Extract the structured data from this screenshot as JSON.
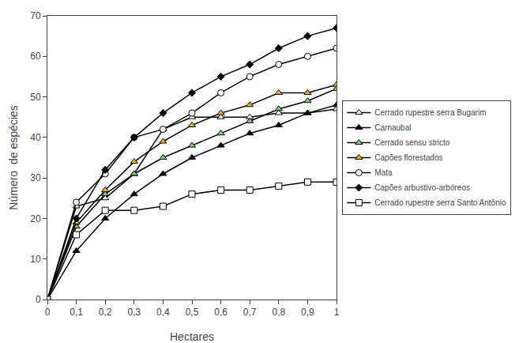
{
  "chart_data": {
    "type": "line",
    "x": [
      0,
      0.1,
      0.2,
      0.3,
      0.4,
      0.5,
      0.6,
      0.7,
      0.8,
      0.9,
      1.0
    ],
    "series": [
      {
        "name": "Cerrado rupestre serra Bugarim",
        "color": "#ffffff",
        "marker": "triangle",
        "values": [
          0,
          23,
          25,
          31,
          42,
          45,
          45,
          45,
          46,
          46,
          47
        ]
      },
      {
        "name": "Carnaubal",
        "color": "#000000",
        "marker": "triangle",
        "values": [
          0,
          12,
          20,
          26,
          31,
          35,
          38,
          41,
          43,
          46,
          48
        ]
      },
      {
        "name": "Cerrado sensu stricto",
        "color": "#7fc97f",
        "marker": "triangle",
        "values": [
          0,
          18,
          26,
          31,
          35,
          38,
          41,
          44,
          47,
          49,
          52
        ]
      },
      {
        "name": "Capões florestados",
        "color": "#e6b800",
        "marker": "triangle",
        "values": [
          0,
          19,
          27,
          34,
          39,
          43,
          46,
          48,
          51,
          51,
          53
        ]
      },
      {
        "name": "Mata",
        "color": "#ffffff",
        "marker": "circle",
        "values": [
          0,
          24,
          31,
          40,
          42,
          46,
          51,
          55,
          58,
          60,
          62
        ]
      },
      {
        "name": "Capões arbustivo-arbóreos",
        "color": "#000000",
        "marker": "diamond",
        "values": [
          0,
          20,
          32,
          40,
          46,
          51,
          55,
          58,
          62,
          65,
          67
        ]
      },
      {
        "name": "Cerrado rupestre serra Santo Antônio",
        "color": "#ffffff",
        "marker": "square",
        "values": [
          0,
          16,
          22,
          22,
          23,
          26,
          27,
          27,
          28,
          29,
          29
        ]
      }
    ],
    "xlabel": "Hectares",
    "ylabel": "Número  de espécies",
    "xlim": [
      0,
      1.0
    ],
    "xticks": [
      0,
      {
        "value": 0.1,
        "label": "0,1"
      },
      {
        "value": 0.2,
        "label": "0,2"
      },
      {
        "value": 0.3,
        "label": "0,3"
      },
      {
        "value": 0.4,
        "label": "0,4"
      },
      {
        "value": 0.5,
        "label": "0,5"
      },
      {
        "value": 0.6,
        "label": "0,6"
      },
      {
        "value": 0.7,
        "label": "0,7"
      },
      {
        "value": 0.8,
        "label": "0,8"
      },
      {
        "value": 0.9,
        "label": "0,9"
      },
      1
    ],
    "ylim": [
      0,
      70
    ],
    "yticks": [
      0,
      10,
      20,
      30,
      40,
      50,
      60,
      70
    ],
    "grid": false,
    "legend": "right"
  }
}
